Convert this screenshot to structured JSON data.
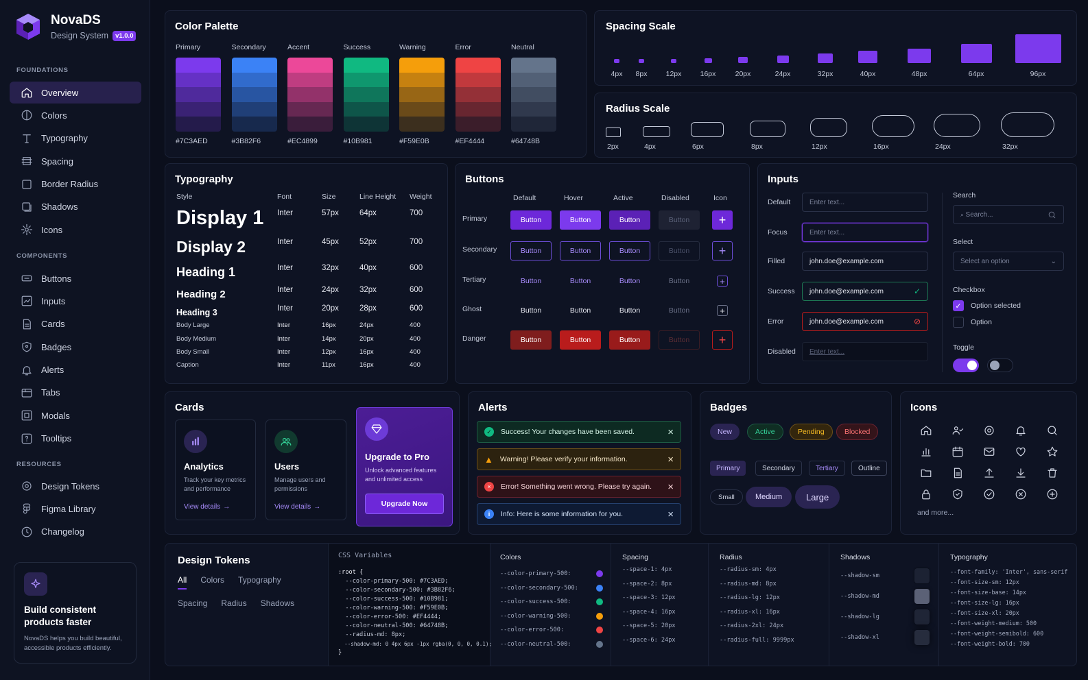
{
  "brand": {
    "name": "NovaDS",
    "subtitle": "Design System",
    "version": "v1.0.0"
  },
  "sidebar": {
    "foundations_title": "FOUNDATIONS",
    "foundations": [
      {
        "label": "Overview",
        "icon": "home-icon"
      },
      {
        "label": "Colors",
        "icon": "palette-icon"
      },
      {
        "label": "Typography",
        "icon": "type-icon"
      },
      {
        "label": "Spacing",
        "icon": "spacing-icon"
      },
      {
        "label": "Border Radius",
        "icon": "radius-icon"
      },
      {
        "label": "Shadows",
        "icon": "shadow-icon"
      },
      {
        "label": "Icons",
        "icon": "gear-icon"
      }
    ],
    "components_title": "COMPONENTS",
    "components": [
      {
        "label": "Buttons",
        "icon": "button-icon"
      },
      {
        "label": "Inputs",
        "icon": "input-icon"
      },
      {
        "label": "Cards",
        "icon": "card-icon"
      },
      {
        "label": "Badges",
        "icon": "badge-icon"
      },
      {
        "label": "Alerts",
        "icon": "bell-icon"
      },
      {
        "label": "Tabs",
        "icon": "tabs-icon"
      },
      {
        "label": "Modals",
        "icon": "modal-icon"
      },
      {
        "label": "Tooltips",
        "icon": "tooltip-icon"
      }
    ],
    "resources_title": "RESOURCES",
    "resources": [
      {
        "label": "Design Tokens",
        "icon": "token-icon"
      },
      {
        "label": "Figma Library",
        "icon": "figma-icon"
      },
      {
        "label": "Changelog",
        "icon": "clock-icon"
      }
    ],
    "promo": {
      "title": "Build consistent products faster",
      "body": "NovaDS helps you build beautiful, accessible products efficiently.",
      "icon": "sparkle-icon"
    }
  },
  "palette": {
    "title": "Color Palette",
    "colors": [
      {
        "name": "Primary",
        "hex": "#7C3AED"
      },
      {
        "name": "Secondary",
        "hex": "#3B82F6"
      },
      {
        "name": "Accent",
        "hex": "#EC4899"
      },
      {
        "name": "Success",
        "hex": "#10B981"
      },
      {
        "name": "Warning",
        "hex": "#F59E0B"
      },
      {
        "name": "Error",
        "hex": "#EF4444"
      },
      {
        "name": "Neutral",
        "hex": "#64748B"
      }
    ]
  },
  "spacing": {
    "title": "Spacing Scale",
    "steps": [
      "4px",
      "8px",
      "12px",
      "16px",
      "20px",
      "24px",
      "32px",
      "40px",
      "48px",
      "64px",
      "96px"
    ]
  },
  "radius": {
    "title": "Radius Scale",
    "steps": [
      "2px",
      "4px",
      "6px",
      "8px",
      "12px",
      "16px",
      "24px",
      "32px"
    ]
  },
  "typography": {
    "title": "Typography",
    "headers": [
      "Style",
      "Font",
      "Size",
      "Line Height",
      "Weight"
    ],
    "rows": [
      {
        "style": "Display 1",
        "font": "Inter",
        "size": "57px",
        "lh": "64px",
        "weight": "700"
      },
      {
        "style": "Display 2",
        "font": "Inter",
        "size": "45px",
        "lh": "52px",
        "weight": "700"
      },
      {
        "style": "Heading 1",
        "font": "Inter",
        "size": "32px",
        "lh": "40px",
        "weight": "600"
      },
      {
        "style": "Heading 2",
        "font": "Inter",
        "size": "24px",
        "lh": "32px",
        "weight": "600"
      },
      {
        "style": "Heading 3",
        "font": "Inter",
        "size": "20px",
        "lh": "28px",
        "weight": "600"
      },
      {
        "style": "Body Large",
        "font": "Inter",
        "size": "16px",
        "lh": "24px",
        "weight": "400"
      },
      {
        "style": "Body Medium",
        "font": "Inter",
        "size": "14px",
        "lh": "20px",
        "weight": "400"
      },
      {
        "style": "Body Small",
        "font": "Inter",
        "size": "12px",
        "lh": "16px",
        "weight": "400"
      },
      {
        "style": "Caption",
        "font": "Inter",
        "size": "11px",
        "lh": "16px",
        "weight": "400"
      }
    ]
  },
  "buttons": {
    "title": "Buttons",
    "headers": [
      "Default",
      "Hover",
      "Active",
      "Disabled",
      "Icon"
    ],
    "rows": [
      "Primary",
      "Secondary",
      "Tertiary",
      "Ghost",
      "Danger"
    ],
    "label": "Button",
    "icon_glyph": "+"
  },
  "inputs": {
    "title": "Inputs",
    "fields": [
      {
        "label": "Default",
        "value": "Enter text..."
      },
      {
        "label": "Focus",
        "value": "Enter text..."
      },
      {
        "label": "Filled",
        "value": "john.doe@example.com"
      },
      {
        "label": "Success",
        "value": "john.doe@example.com"
      },
      {
        "label": "Error",
        "value": "john.doe@example.com"
      },
      {
        "label": "Disabled",
        "value": "Enter text..."
      }
    ],
    "search_label": "Search",
    "search_placeholder": "Search...",
    "select_label": "Select",
    "select_value": "Select an option",
    "checkbox_label": "Checkbox",
    "checkbox_checked": "Option selected",
    "checkbox_unchecked": "Option",
    "toggle_label": "Toggle"
  },
  "cards": {
    "title": "Cards",
    "items": [
      {
        "title": "Analytics",
        "body": "Track your key metrics and performance",
        "link": "View details"
      },
      {
        "title": "Users",
        "body": "Manage users and permissions",
        "link": "View details"
      }
    ],
    "pro": {
      "title": "Upgrade to Pro",
      "body": "Unlock advanced features and unlimited access",
      "button": "Upgrade Now"
    }
  },
  "alerts": {
    "title": "Alerts",
    "items": [
      {
        "text": "Success! Your changes have been saved.",
        "type": "success"
      },
      {
        "text": "Warning! Please verify your information.",
        "type": "warning"
      },
      {
        "text": "Error! Something went wrong. Please try again.",
        "type": "error"
      },
      {
        "text": "Info: Here is some information for you.",
        "type": "info"
      }
    ]
  },
  "badges": {
    "title": "Badges",
    "status": [
      "New",
      "Active",
      "Pending",
      "Blocked"
    ],
    "variants": [
      "Primary",
      "Secondary",
      "Tertiary",
      "Outline"
    ],
    "sizes": [
      "Small",
      "Medium",
      "Large"
    ]
  },
  "icons": {
    "title": "Icons",
    "names": [
      "home-icon",
      "users-icon",
      "gear-icon",
      "bell-icon",
      "search-icon",
      "bar-chart-icon",
      "calendar-icon",
      "mail-icon",
      "heart-icon",
      "star-icon",
      "folder-icon",
      "file-icon",
      "upload-icon",
      "download-icon",
      "trash-icon",
      "lock-icon",
      "shield-icon",
      "check-circle-icon",
      "x-circle-icon",
      "plus-circle-icon"
    ],
    "more": "and more..."
  },
  "tokens": {
    "title": "Design Tokens",
    "tabs": [
      "All",
      "Colors",
      "Typography",
      "Spacing",
      "Radius",
      "Shadows"
    ],
    "css_title": "CSS Variables",
    "css_lines": [
      ":root {",
      "  --color-primary-500: #7C3AED;",
      "  --color-secondary-500: #3B82F6;",
      "  --color-success-500: #10B981;",
      "  --color-warning-500: #F59E0B;",
      "  --color-error-500: #EF4444;",
      "  --color-neutral-500: #64748B;",
      "  --radius-md: 8px;",
      "  --shadow-md: 0 4px 6px -1px rgba(0, 0, 0, 0.1);",
      "}"
    ],
    "colors_title": "Colors",
    "colors": [
      {
        "name": "--color-primary-500:",
        "hex": "#7C3AED"
      },
      {
        "name": "--color-secondary-500:",
        "hex": "#3B82F6"
      },
      {
        "name": "--color-success-500:",
        "hex": "#10B981"
      },
      {
        "name": "--color-warning-500:",
        "hex": "#F59E0B"
      },
      {
        "name": "--color-error-500:",
        "hex": "#EF4444"
      },
      {
        "name": "--color-neutral-500:",
        "hex": "#64748B"
      }
    ],
    "spacing_title": "Spacing",
    "spacing": [
      "--space-1: 4px",
      "--space-2: 8px",
      "--space-3: 12px",
      "--space-4: 16px",
      "--space-5: 20px",
      "--space-6: 24px"
    ],
    "radius_title": "Radius",
    "radius": [
      "--radius-sm: 4px",
      "--radius-md: 8px",
      "--radius-lg: 12px",
      "--radius-xl: 16px",
      "--radius-2xl: 24px",
      "--radius-full: 9999px"
    ],
    "shadows_title": "Shadows",
    "shadows": [
      "--shadow-sm",
      "--shadow-md",
      "--shadow-lg",
      "--shadow-xl"
    ],
    "typography_title": "Typography",
    "typography": [
      "--font-family: 'Inter', sans-serif",
      "--font-size-sm: 12px",
      "--font-size-base: 14px",
      "--font-size-lg: 16px",
      "--font-size-xl: 20px",
      "--font-weight-medium: 500",
      "--font-weight-semibold: 600",
      "--font-weight-bold: 700"
    ]
  }
}
